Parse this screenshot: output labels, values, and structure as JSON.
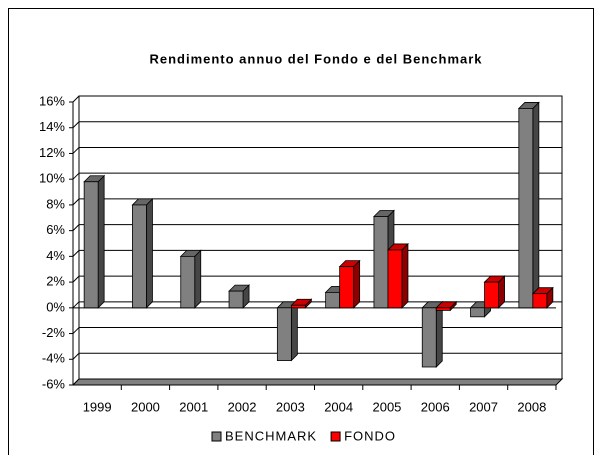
{
  "chart_data": {
    "type": "bar3d",
    "title": "Rendimento annuo del Fondo e del Benchmark",
    "categories": [
      "1999",
      "2000",
      "2001",
      "2002",
      "2003",
      "2004",
      "2005",
      "2006",
      "2007",
      "2008"
    ],
    "series": [
      {
        "name": "BENCHMARK",
        "color": "#808080",
        "values": [
          9.8,
          8.0,
          4.0,
          1.3,
          -4.1,
          1.2,
          7.1,
          -4.6,
          -0.7,
          15.5
        ]
      },
      {
        "name": "FONDO",
        "color": "#ff0000",
        "values": [
          null,
          null,
          null,
          null,
          0.2,
          3.2,
          4.5,
          -0.2,
          2.0,
          1.1
        ]
      }
    ],
    "ylim": [
      -6,
      16
    ],
    "yticks": [
      {
        "value": -6,
        "label": "-6%"
      },
      {
        "value": -4,
        "label": "-4%"
      },
      {
        "value": -2,
        "label": "-2%"
      },
      {
        "value": 0,
        "label": "0%"
      },
      {
        "value": 2,
        "label": "2%"
      },
      {
        "value": 4,
        "label": "4%"
      },
      {
        "value": 6,
        "label": "6%"
      },
      {
        "value": 8,
        "label": "8%"
      },
      {
        "value": 10,
        "label": "10%"
      },
      {
        "value": 12,
        "label": "12%"
      },
      {
        "value": 14,
        "label": "14%"
      },
      {
        "value": 16,
        "label": "16%"
      }
    ],
    "grid": true,
    "legend": "bottom"
  }
}
